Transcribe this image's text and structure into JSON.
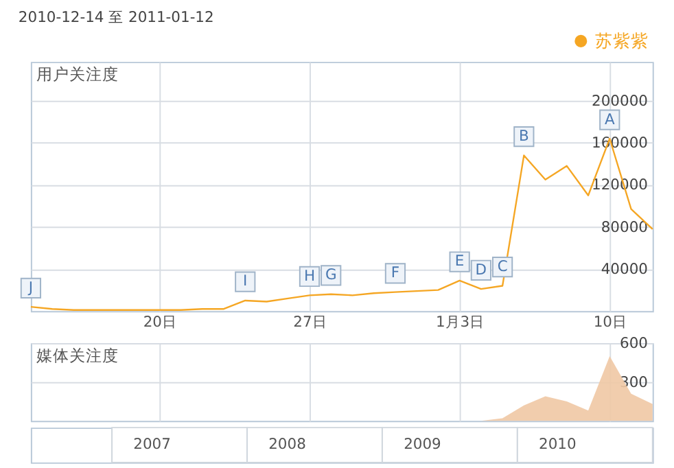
{
  "chart_data": [
    {
      "type": "line",
      "title": "2010-12-14 至 2011-01-12",
      "ylabel": "用户关注度",
      "x": [
        "2010-12-14",
        "2010-12-15",
        "2010-12-16",
        "2010-12-17",
        "2010-12-18",
        "2010-12-19",
        "2010-12-20",
        "2010-12-21",
        "2010-12-22",
        "2010-12-23",
        "2010-12-24",
        "2010-12-25",
        "2010-12-26",
        "2010-12-27",
        "2010-12-28",
        "2010-12-29",
        "2010-12-30",
        "2010-12-31",
        "2011-01-01",
        "2011-01-02",
        "2011-01-03",
        "2011-01-04",
        "2011-01-05",
        "2011-01-06",
        "2011-01-07",
        "2011-01-08",
        "2011-01-09",
        "2011-01-10",
        "2011-01-11",
        "2011-01-12"
      ],
      "series": [
        {
          "name": "苏紫紫",
          "color": "#f5a623",
          "values": [
            4000,
            2000,
            1000,
            1000,
            1000,
            1000,
            1000,
            1000,
            2000,
            2000,
            10000,
            9000,
            12000,
            15000,
            16000,
            15000,
            17000,
            18000,
            19000,
            20000,
            29000,
            21000,
            24000,
            148000,
            125000,
            138000,
            110000,
            164000,
            97000,
            78000
          ]
        }
      ],
      "xlim": [
        "2010-12-14",
        "2011-01-12"
      ],
      "xticks": [
        {
          "value": "2010-12-20",
          "label": "20日"
        },
        {
          "value": "2010-12-27",
          "label": "27日"
        },
        {
          "value": "2011-01-03",
          "label": "1月3日"
        },
        {
          "value": "2011-01-10",
          "label": "10日"
        }
      ],
      "ylim": [
        0,
        237000
      ],
      "yticks": [
        40000,
        80000,
        120000,
        160000,
        200000
      ],
      "annotations": [
        {
          "text": "J",
          "x": "2010-12-14",
          "y": 4000
        },
        {
          "text": "I",
          "x": "2010-12-24",
          "y": 10000
        },
        {
          "text": "H",
          "x": "2010-12-27",
          "y": 15000
        },
        {
          "text": "G",
          "x": "2010-12-28",
          "y": 16000
        },
        {
          "text": "F",
          "x": "2010-12-31",
          "y": 18000
        },
        {
          "text": "E",
          "x": "2011-01-03",
          "y": 29000
        },
        {
          "text": "D",
          "x": "2011-01-04",
          "y": 21000
        },
        {
          "text": "C",
          "x": "2011-01-05",
          "y": 24000
        },
        {
          "text": "B",
          "x": "2011-01-06",
          "y": 148000
        },
        {
          "text": "A",
          "x": "2011-01-10",
          "y": 164000
        }
      ],
      "grid": true,
      "legend": "top right",
      "marker": "none",
      "line_style": "solid"
    },
    {
      "type": "area",
      "ylabel": "媒体关注度",
      "x": [
        "2010-12-14",
        "2010-12-15",
        "2010-12-16",
        "2010-12-17",
        "2010-12-18",
        "2010-12-19",
        "2010-12-20",
        "2010-12-21",
        "2010-12-22",
        "2010-12-23",
        "2010-12-24",
        "2010-12-25",
        "2010-12-26",
        "2010-12-27",
        "2010-12-28",
        "2010-12-29",
        "2010-12-30",
        "2010-12-31",
        "2011-01-01",
        "2011-01-02",
        "2011-01-03",
        "2011-01-04",
        "2011-01-05",
        "2011-01-06",
        "2011-01-07",
        "2011-01-08",
        "2011-01-09",
        "2011-01-10",
        "2011-01-11",
        "2011-01-12"
      ],
      "series": [
        {
          "color": "#f0c8a4",
          "values": [
            0,
            0,
            0,
            0,
            0,
            0,
            0,
            0,
            0,
            0,
            0,
            0,
            0,
            0,
            0,
            0,
            0,
            0,
            0,
            0,
            0,
            0,
            20,
            120,
            190,
            150,
            80,
            500,
            210,
            130
          ]
        }
      ],
      "xlim": [
        "2010-12-14",
        "2011-01-12"
      ],
      "xticks": [
        {
          "value": "2010-12-20",
          "label": null
        },
        {
          "value": "2010-12-27",
          "label": null
        },
        {
          "value": "2011-01-03",
          "label": null
        },
        {
          "value": "2011-01-10",
          "label": null
        }
      ],
      "ylim": [
        0,
        600
      ],
      "yticks": [
        300,
        600
      ],
      "tick_labels": "y",
      "grid": true,
      "legend": false,
      "annotations": [
        "2007",
        "2008",
        "2009",
        "2010"
      ]
    }
  ]
}
